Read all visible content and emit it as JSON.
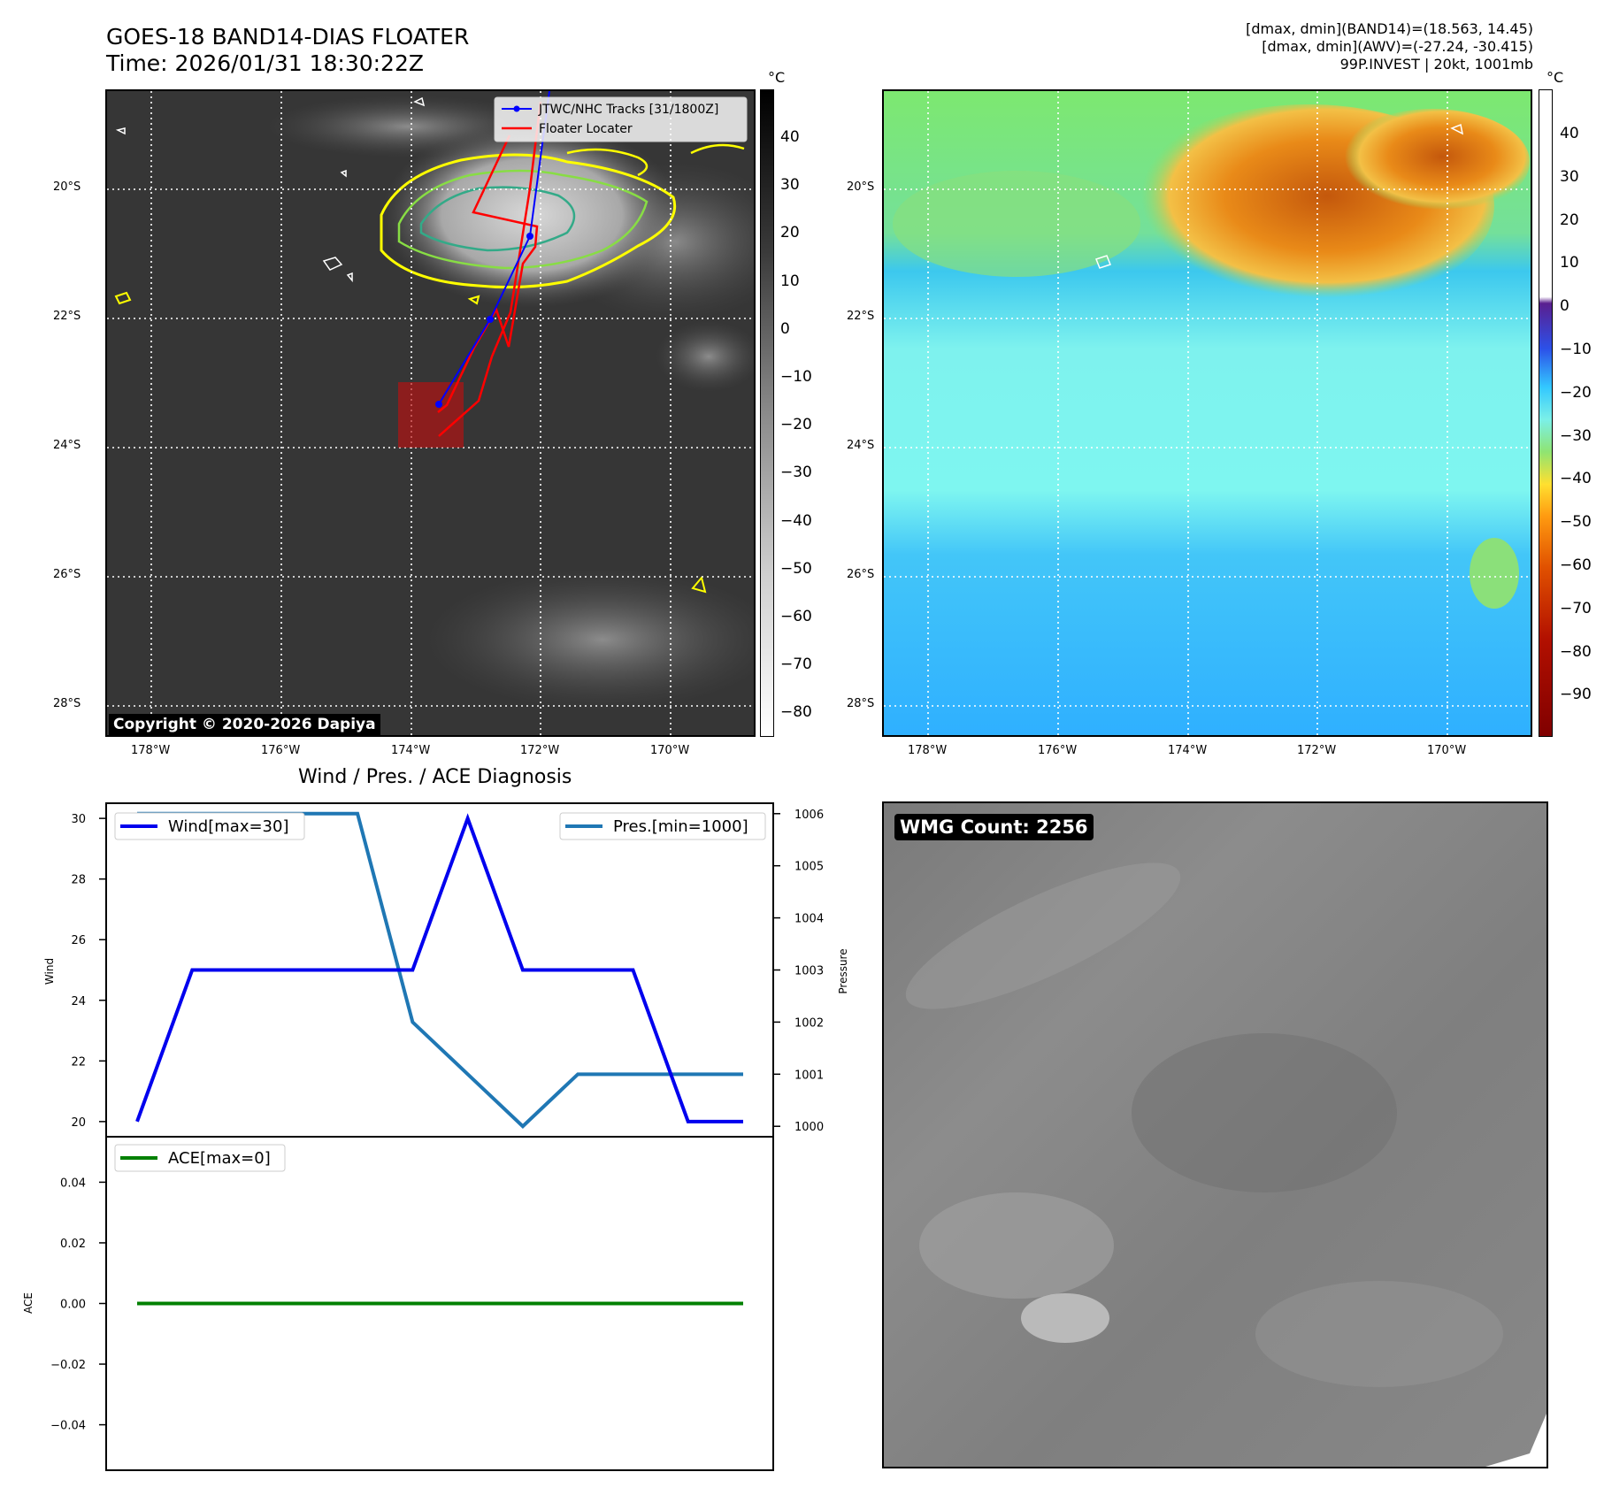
{
  "header": {
    "title": "GOES-18 BAND14-DIAS FLOATER",
    "time": "Time: 2026/01/31 18:30:22Z",
    "info_line1": "[dmax, dmin](BAND14)=(18.563, 14.45)",
    "info_line2": "[dmax, dmin](AWV)=(-27.24, -30.415)",
    "info_line3": "99P.INVEST | 20kt, 1001mb"
  },
  "map_left": {
    "lon_labels": [
      "178°W",
      "176°W",
      "174°W",
      "172°W",
      "170°W"
    ],
    "lat_labels": [
      "20°S",
      "22°S",
      "24°S",
      "26°S",
      "28°S"
    ],
    "legend": {
      "tracks": "JTWC/NHC Tracks [31/1800Z]",
      "floater": "Floater Locater"
    },
    "copyright": "Copyright © 2020-2026 Dapiya",
    "colorbar": {
      "unit": "°C",
      "ticks": [
        "40",
        "30",
        "20",
        "10",
        "0",
        "−10",
        "−20",
        "−30",
        "−40",
        "−50",
        "−60",
        "−70",
        "−80"
      ]
    },
    "colors": {
      "track": "#0000ff",
      "floater": "#ff0000",
      "contour_outer": "#ffff00",
      "contour_mid": "#88dd44",
      "contour_inner": "#33aa88"
    }
  },
  "map_right": {
    "lon_labels": [
      "178°W",
      "176°W",
      "174°W",
      "172°W",
      "170°W"
    ],
    "lat_labels": [
      "20°S",
      "22°S",
      "24°S",
      "26°S",
      "28°S"
    ],
    "colorbar": {
      "unit": "°C",
      "ticks": [
        "40",
        "30",
        "20",
        "10",
        "0",
        "−10",
        "−20",
        "−30",
        "−40",
        "−50",
        "−60",
        "−70",
        "−80",
        "−90"
      ]
    }
  },
  "diagnosis": {
    "title": "Wind / Pres. / ACE Diagnosis"
  },
  "wmg": {
    "label": "WMG Count: 2256"
  },
  "chart_data": [
    {
      "type": "line",
      "title": "Wind / Pres. / ACE Diagnosis",
      "x": [
        0,
        1,
        2,
        3,
        4,
        5,
        6,
        7,
        8,
        9,
        10,
        11
      ],
      "series": [
        {
          "name": "Wind[max=30]",
          "axis": "left",
          "color": "#0000ee",
          "values": [
            20,
            25,
            25,
            25,
            25,
            25,
            30,
            25,
            25,
            25,
            20,
            20
          ]
        },
        {
          "name": "Pres.[min=1000]",
          "axis": "right",
          "color": "#1f77b4",
          "values": [
            1006,
            1006,
            1006,
            1006,
            1006,
            1002,
            1001,
            1000,
            1001,
            1001,
            1001,
            1001
          ]
        }
      ],
      "ylabel": "Wind",
      "y2label": "Pressure",
      "ylim": [
        19.5,
        30.5
      ],
      "y2lim": [
        999.8,
        1006.2
      ],
      "yticks": [
        20,
        22,
        24,
        26,
        28,
        30
      ],
      "y2ticks": [
        1000,
        1001,
        1002,
        1003,
        1004,
        1005,
        1006
      ]
    },
    {
      "type": "line",
      "x": [
        0,
        11
      ],
      "series": [
        {
          "name": "ACE[max=0]",
          "color": "#008000",
          "values": [
            0,
            0
          ]
        }
      ],
      "ylabel": "ACE",
      "ylim": [
        -0.055,
        0.055
      ],
      "yticks": [
        0.04,
        0.02,
        0.0,
        -0.02,
        -0.04
      ],
      "ytick_labels": [
        "0.04",
        "0.02",
        "0.00",
        "−0.02",
        "−0.04"
      ]
    }
  ]
}
